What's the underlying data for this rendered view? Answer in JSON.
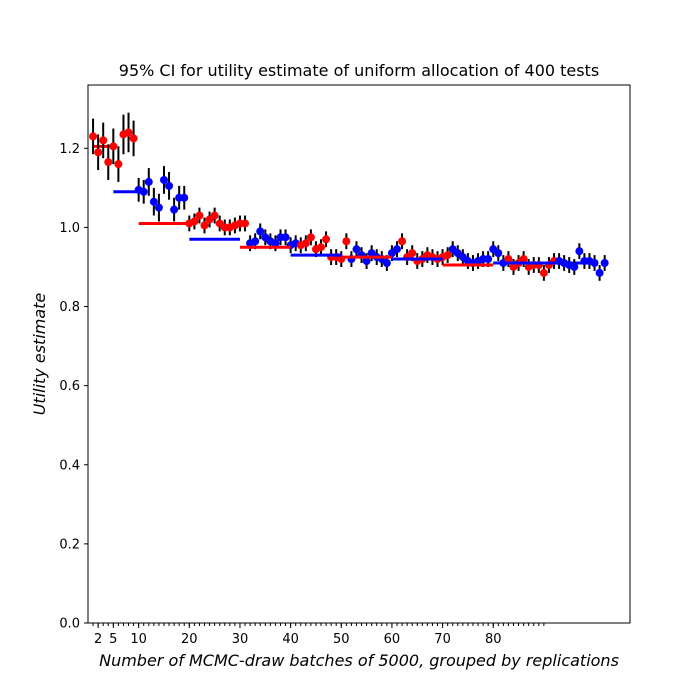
{
  "chart_data": {
    "type": "scatter",
    "title": "95% CI for utility estimate of uniform allocation of 400 tests",
    "xlabel": "Number of MCMC-draw batches of 5000, grouped by replications",
    "ylabel": "Utility estimate",
    "xlim": [
      0,
      107
    ],
    "ylim": [
      0.0,
      1.36
    ],
    "x_tick_labels": [
      2,
      5,
      10,
      20,
      30,
      40,
      50,
      60,
      70,
      80
    ],
    "x_minor_ticks": [
      1,
      2,
      3,
      4,
      5,
      6,
      7,
      8,
      9,
      10,
      11,
      12,
      13,
      14,
      15,
      16,
      17,
      18,
      19,
      20,
      21,
      22,
      23,
      24,
      25,
      26,
      27,
      28,
      29,
      30,
      31,
      32,
      33,
      34,
      35,
      36,
      37,
      38,
      39,
      40,
      41,
      42,
      43,
      44,
      45,
      46,
      47,
      48,
      49,
      50,
      51,
      52,
      53,
      54,
      55,
      56,
      57,
      58,
      59,
      60,
      61,
      62,
      63,
      64,
      65,
      66,
      67,
      68,
      69,
      70,
      71,
      72,
      73,
      74,
      75,
      76,
      77,
      78,
      79,
      80,
      81,
      82,
      83,
      84,
      85,
      86,
      87,
      88,
      89,
      90
    ],
    "y_ticks": [
      0.0,
      0.2,
      0.4,
      0.6,
      0.8,
      1.0,
      1.2
    ],
    "grid": false,
    "errorbar_color": "#000000",
    "colors": {
      "red": "#ff0000",
      "blue": "#0000ff"
    },
    "groups": [
      {
        "color": "red",
        "x_start": 1,
        "x_end": 5,
        "mean": 1.205,
        "points": [
          [
            1,
            1.23,
            0.045
          ],
          [
            2,
            1.19,
            0.045
          ],
          [
            3,
            1.22,
            0.045
          ],
          [
            4,
            1.165,
            0.045
          ],
          [
            5,
            1.205,
            0.045
          ],
          [
            6,
            1.16,
            0.045
          ],
          [
            7,
            1.235,
            0.05
          ],
          [
            8,
            1.24,
            0.05
          ],
          [
            9,
            1.225,
            0.045
          ]
        ]
      },
      {
        "color": "blue",
        "x_start": 5,
        "x_end": 10,
        "mean": 1.09,
        "points": [
          [
            10,
            1.095,
            0.03
          ],
          [
            11,
            1.09,
            0.03
          ],
          [
            12,
            1.115,
            0.035
          ],
          [
            13,
            1.065,
            0.035
          ],
          [
            14,
            1.05,
            0.035
          ],
          [
            15,
            1.12,
            0.035
          ],
          [
            16,
            1.105,
            0.035
          ],
          [
            17,
            1.045,
            0.03
          ],
          [
            18,
            1.075,
            0.03
          ],
          [
            19,
            1.075,
            0.03
          ]
        ]
      },
      {
        "color": "red",
        "x_start": 10,
        "x_end": 20,
        "mean": 1.01,
        "points": [
          [
            20,
            1.01,
            0.02
          ],
          [
            21,
            1.015,
            0.02
          ],
          [
            22,
            1.03,
            0.02
          ],
          [
            23,
            1.005,
            0.02
          ],
          [
            24,
            1.02,
            0.02
          ],
          [
            25,
            1.03,
            0.02
          ],
          [
            26,
            1.01,
            0.02
          ],
          [
            27,
            1.0,
            0.02
          ],
          [
            28,
            1.0,
            0.02
          ],
          [
            29,
            1.005,
            0.02
          ],
          [
            30,
            1.01,
            0.02
          ],
          [
            31,
            1.01,
            0.02
          ]
        ]
      },
      {
        "color": "blue",
        "x_start": 20,
        "x_end": 30,
        "mean": 0.97,
        "points": [
          [
            32,
            0.96,
            0.02
          ],
          [
            33,
            0.965,
            0.02
          ],
          [
            34,
            0.99,
            0.02
          ],
          [
            35,
            0.975,
            0.02
          ],
          [
            36,
            0.965,
            0.02
          ],
          [
            37,
            0.96,
            0.02
          ],
          [
            38,
            0.975,
            0.02
          ],
          [
            39,
            0.975,
            0.02
          ],
          [
            40,
            0.955,
            0.02
          ],
          [
            41,
            0.96,
            0.02
          ]
        ]
      },
      {
        "color": "red",
        "x_start": 30,
        "x_end": 40,
        "mean": 0.95,
        "points": [
          [
            42,
            0.955,
            0.02
          ],
          [
            43,
            0.96,
            0.02
          ],
          [
            44,
            0.975,
            0.02
          ],
          [
            45,
            0.945,
            0.02
          ],
          [
            46,
            0.95,
            0.02
          ],
          [
            47,
            0.97,
            0.02
          ],
          [
            48,
            0.925,
            0.02
          ],
          [
            49,
            0.925,
            0.02
          ],
          [
            50,
            0.92,
            0.02
          ],
          [
            51,
            0.965,
            0.02
          ]
        ]
      },
      {
        "color": "blue",
        "x_start": 40,
        "x_end": 50,
        "mean": 0.93,
        "points": [
          [
            52,
            0.92,
            0.02
          ],
          [
            53,
            0.945,
            0.02
          ],
          [
            54,
            0.93,
            0.02
          ],
          [
            55,
            0.915,
            0.02
          ],
          [
            56,
            0.935,
            0.02
          ],
          [
            57,
            0.925,
            0.02
          ],
          [
            58,
            0.92,
            0.02
          ],
          [
            59,
            0.91,
            0.02
          ],
          [
            60,
            0.935,
            0.02
          ],
          [
            61,
            0.945,
            0.02
          ]
        ]
      },
      {
        "color": "red",
        "x_start": 50,
        "x_end": 60,
        "mean": 0.925,
        "points": [
          [
            62,
            0.965,
            0.02
          ],
          [
            63,
            0.925,
            0.02
          ],
          [
            64,
            0.935,
            0.02
          ],
          [
            65,
            0.915,
            0.02
          ],
          [
            66,
            0.92,
            0.02
          ],
          [
            67,
            0.93,
            0.02
          ],
          [
            68,
            0.925,
            0.02
          ],
          [
            69,
            0.92,
            0.02
          ],
          [
            70,
            0.925,
            0.02
          ],
          [
            71,
            0.93,
            0.02
          ]
        ]
      },
      {
        "color": "blue",
        "x_start": 60,
        "x_end": 70,
        "mean": 0.92,
        "points": [
          [
            72,
            0.945,
            0.02
          ],
          [
            73,
            0.935,
            0.02
          ],
          [
            74,
            0.925,
            0.02
          ],
          [
            75,
            0.915,
            0.02
          ],
          [
            76,
            0.91,
            0.02
          ],
          [
            77,
            0.915,
            0.02
          ],
          [
            78,
            0.92,
            0.02
          ],
          [
            79,
            0.92,
            0.02
          ],
          [
            80,
            0.945,
            0.02
          ],
          [
            81,
            0.935,
            0.02
          ],
          [
            82,
            0.91,
            0.02
          ]
        ]
      },
      {
        "color": "red",
        "x_start": 70,
        "x_end": 80,
        "mean": 0.905,
        "points": [
          [
            83,
            0.92,
            0.02
          ],
          [
            84,
            0.9,
            0.02
          ],
          [
            85,
            0.91,
            0.02
          ],
          [
            86,
            0.92,
            0.02
          ],
          [
            87,
            0.9,
            0.02
          ],
          [
            88,
            0.905,
            0.02
          ],
          [
            89,
            0.905,
            0.02
          ],
          [
            90,
            0.885,
            0.02
          ],
          [
            91,
            0.905,
            0.02
          ],
          [
            92,
            0.915,
            0.02
          ]
        ]
      },
      {
        "color": "blue",
        "x_start": 80,
        "x_end": 100,
        "mean": 0.91,
        "points": [
          [
            93,
            0.915,
            0.02
          ],
          [
            94,
            0.91,
            0.02
          ],
          [
            95,
            0.905,
            0.02
          ],
          [
            96,
            0.9,
            0.02
          ],
          [
            97,
            0.94,
            0.02
          ],
          [
            98,
            0.915,
            0.02
          ],
          [
            99,
            0.915,
            0.02
          ],
          [
            100,
            0.91,
            0.02
          ],
          [
            101,
            0.885,
            0.02
          ],
          [
            102,
            0.91,
            0.02
          ]
        ]
      }
    ]
  }
}
